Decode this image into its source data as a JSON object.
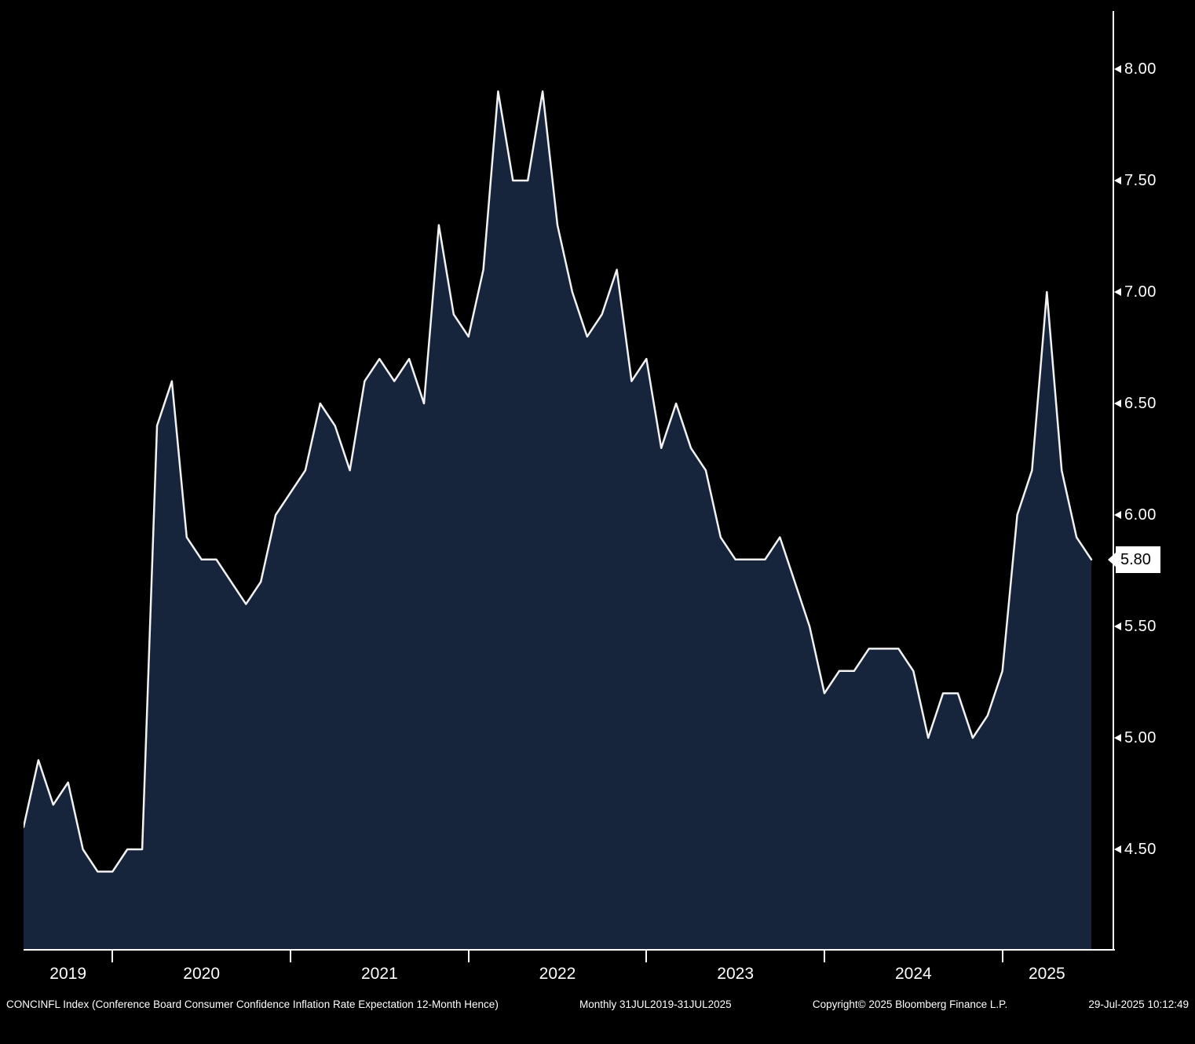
{
  "chart_data": {
    "type": "area",
    "title": "CONCINFL Index",
    "xlabel": "",
    "ylabel": "",
    "x_range_label": "31JUL2019-31JUL2025",
    "periodicity": "Monthly",
    "months": [
      "2019-07",
      "2019-08",
      "2019-09",
      "2019-10",
      "2019-11",
      "2019-12",
      "2020-01",
      "2020-02",
      "2020-03",
      "2020-04",
      "2020-05",
      "2020-06",
      "2020-07",
      "2020-08",
      "2020-09",
      "2020-10",
      "2020-11",
      "2020-12",
      "2021-01",
      "2021-02",
      "2021-03",
      "2021-04",
      "2021-05",
      "2021-06",
      "2021-07",
      "2021-08",
      "2021-09",
      "2021-10",
      "2021-11",
      "2021-12",
      "2022-01",
      "2022-02",
      "2022-03",
      "2022-04",
      "2022-05",
      "2022-06",
      "2022-07",
      "2022-08",
      "2022-09",
      "2022-10",
      "2022-11",
      "2022-12",
      "2023-01",
      "2023-02",
      "2023-03",
      "2023-04",
      "2023-05",
      "2023-06",
      "2023-07",
      "2023-08",
      "2023-09",
      "2023-10",
      "2023-11",
      "2023-12",
      "2024-01",
      "2024-02",
      "2024-03",
      "2024-04",
      "2024-05",
      "2024-06",
      "2024-07",
      "2024-08",
      "2024-09",
      "2024-10",
      "2024-11",
      "2024-12",
      "2025-01",
      "2025-02",
      "2025-03",
      "2025-04",
      "2025-05",
      "2025-06",
      "2025-07"
    ],
    "values": [
      4.6,
      4.9,
      4.7,
      4.8,
      4.5,
      4.4,
      4.4,
      4.5,
      4.5,
      6.4,
      6.6,
      5.9,
      5.8,
      5.8,
      5.7,
      5.6,
      5.7,
      6.0,
      6.1,
      6.2,
      6.5,
      6.4,
      6.2,
      6.6,
      6.7,
      6.6,
      6.7,
      6.5,
      7.3,
      6.9,
      6.8,
      7.1,
      7.9,
      7.5,
      7.5,
      7.9,
      7.3,
      7.0,
      6.8,
      6.9,
      7.1,
      6.6,
      6.7,
      6.3,
      6.5,
      6.3,
      6.2,
      5.9,
      5.8,
      5.8,
      5.8,
      5.9,
      5.7,
      5.5,
      5.2,
      5.3,
      5.3,
      5.4,
      5.4,
      5.4,
      5.3,
      5.0,
      5.2,
      5.2,
      5.0,
      5.1,
      5.3,
      6.0,
      6.2,
      7.0,
      6.2,
      5.9,
      5.8
    ],
    "ylim": [
      4.05,
      8.26
    ],
    "y_ticks": [
      {
        "label": "8.00",
        "value": 8.0
      },
      {
        "label": "7.50",
        "value": 7.5
      },
      {
        "label": "7.00",
        "value": 7.0
      },
      {
        "label": "6.50",
        "value": 6.5
      },
      {
        "label": "6.00",
        "value": 6.0
      },
      {
        "label": "5.50",
        "value": 5.5
      },
      {
        "label": "5.00",
        "value": 5.0
      },
      {
        "label": "4.50",
        "value": 4.5
      }
    ],
    "x_year_labels": [
      "2019",
      "2020",
      "2021",
      "2022",
      "2023",
      "2024",
      "2025"
    ],
    "last_value": 5.8,
    "last_value_label": "5.80",
    "grid": false,
    "legend_position": "none",
    "line_color": "#f2f2f2",
    "fill_color": "#16243c",
    "background_color": "#000000",
    "axis_color": "#ffffff"
  },
  "footer": {
    "description": "CONCINFL Index (Conference Board Consumer Confidence Inflation Rate Expectation 12-Month Hence)",
    "periodicity": "Monthly 31JUL2019-31JUL2025",
    "copyright": "Copyright© 2025 Bloomberg Finance L.P.",
    "timestamp": "29-Jul-2025 10:12:49"
  }
}
